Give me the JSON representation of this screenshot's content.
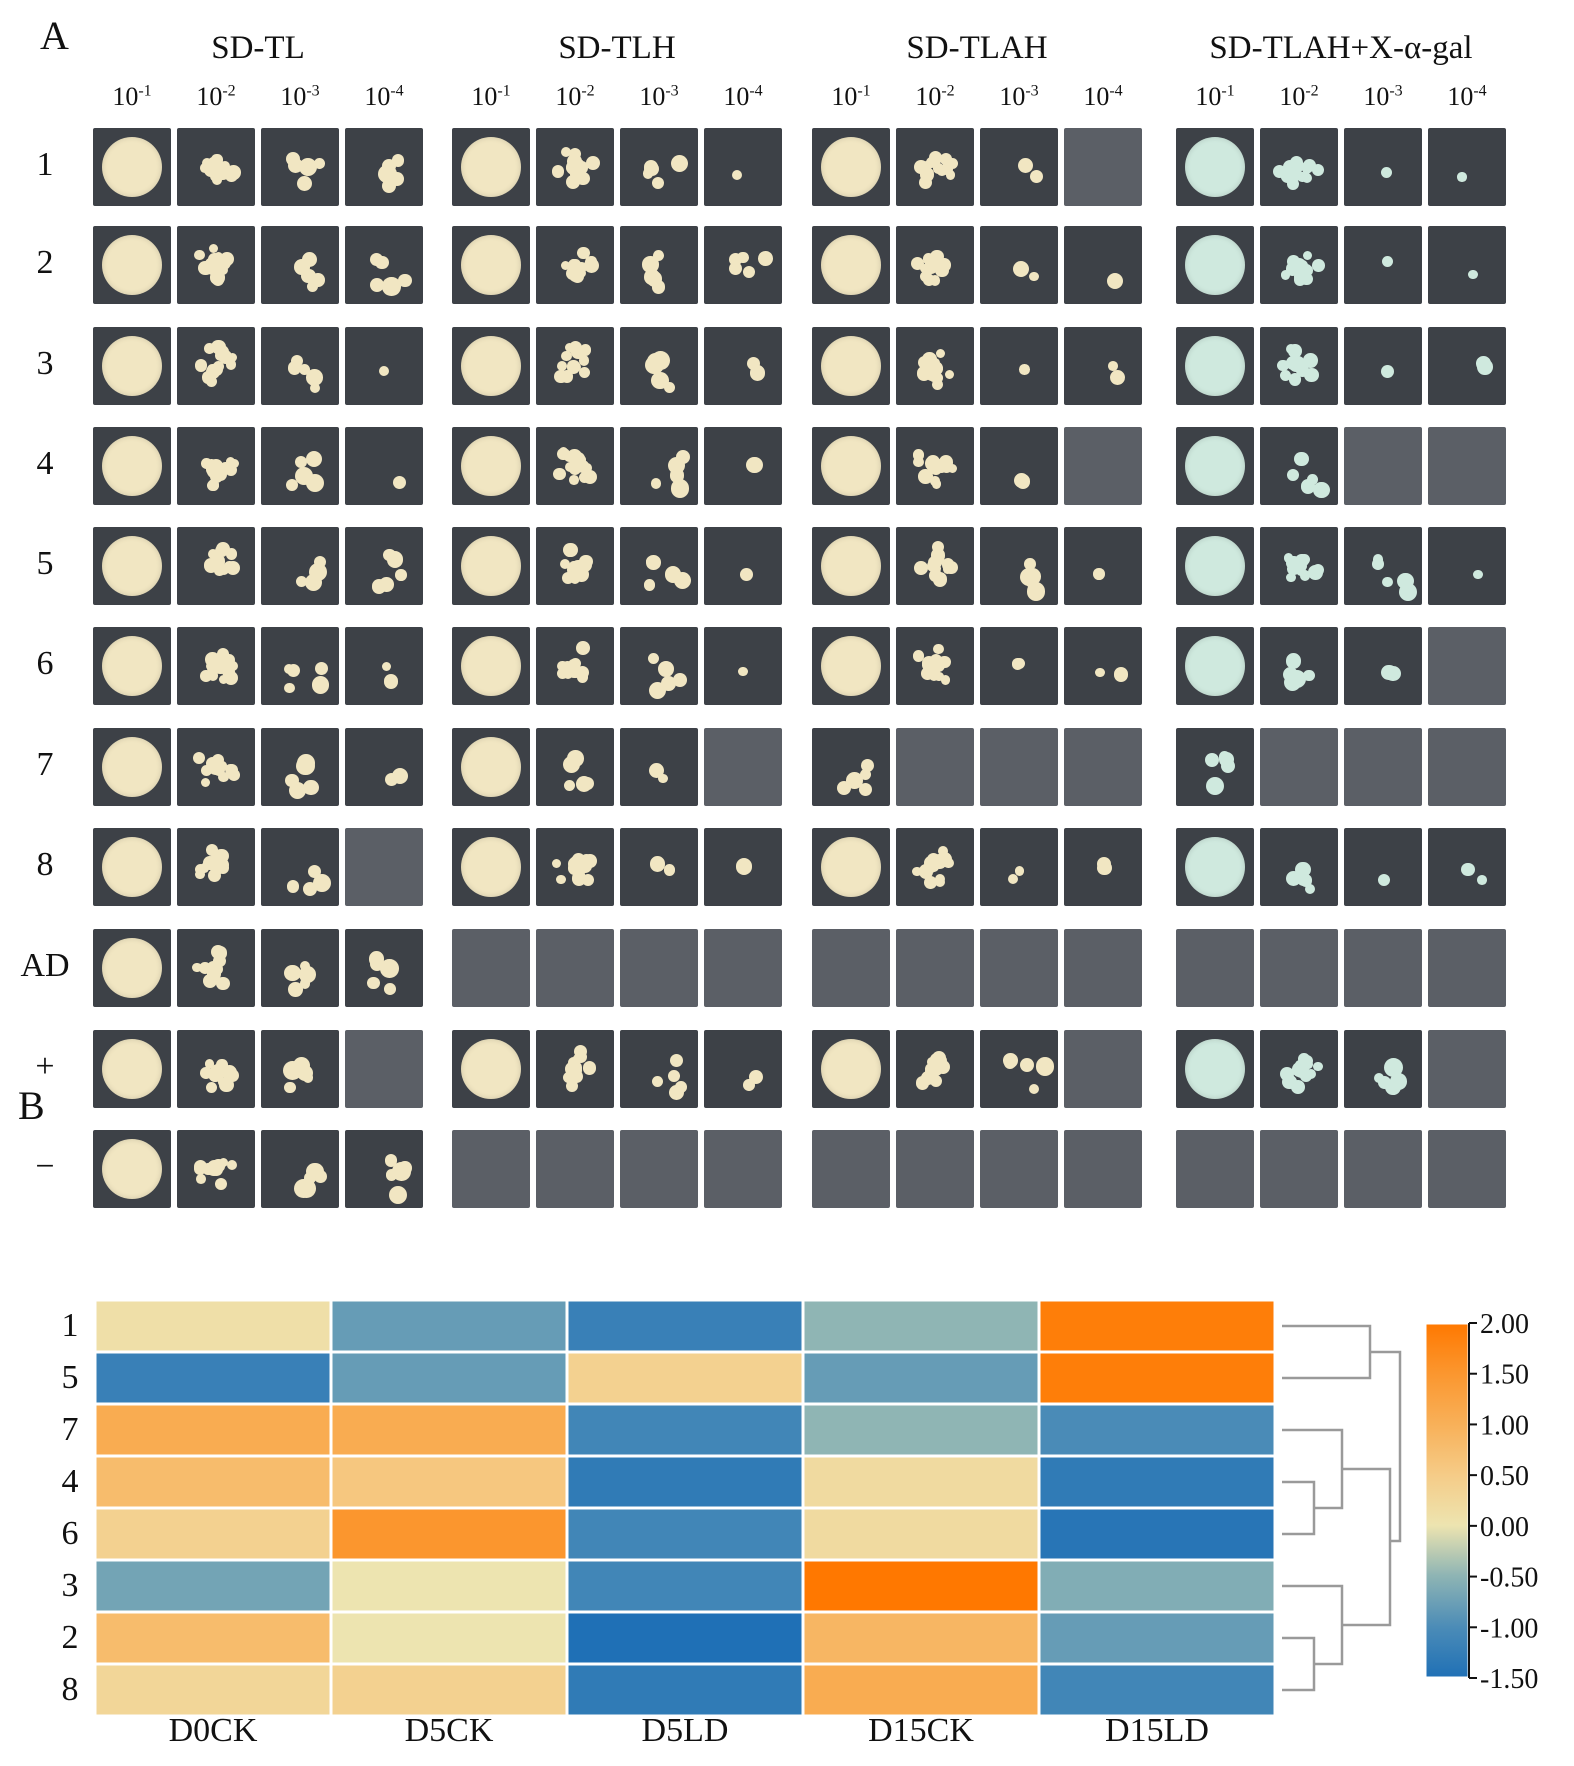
{
  "panel_a": {
    "label": "A",
    "media": [
      "SD-TL",
      "SD-TLH",
      "SD-TLAH",
      "SD-TLAH+X-α-gal"
    ],
    "dilutions": [
      {
        "base": "10",
        "exp": "-1"
      },
      {
        "base": "10",
        "exp": "-2"
      },
      {
        "base": "10",
        "exp": "-3"
      },
      {
        "base": "10",
        "exp": "-4"
      }
    ],
    "rows": [
      "1",
      "2",
      "3",
      "4",
      "5",
      "6",
      "7",
      "8",
      "AD",
      "+",
      "−"
    ],
    "growth": [
      [
        [
          4,
          3,
          2,
          2
        ],
        [
          4,
          3,
          2,
          1
        ],
        [
          4,
          3,
          1,
          0
        ],
        [
          4,
          3,
          1,
          1
        ]
      ],
      [
        [
          4,
          3,
          2,
          2
        ],
        [
          4,
          3,
          2,
          2
        ],
        [
          4,
          3,
          1,
          1
        ],
        [
          4,
          3,
          1,
          1
        ]
      ],
      [
        [
          4,
          3,
          2,
          1
        ],
        [
          4,
          3,
          2,
          1
        ],
        [
          4,
          3,
          1,
          1
        ],
        [
          4,
          3,
          1,
          1
        ]
      ],
      [
        [
          4,
          3,
          2,
          1
        ],
        [
          4,
          3,
          2,
          1
        ],
        [
          4,
          3,
          1,
          0
        ],
        [
          4,
          2,
          0,
          0
        ]
      ],
      [
        [
          4,
          3,
          2,
          2
        ],
        [
          4,
          3,
          2,
          1
        ],
        [
          4,
          3,
          2,
          1
        ],
        [
          4,
          3,
          2,
          1
        ]
      ],
      [
        [
          4,
          3,
          2,
          1
        ],
        [
          4,
          3,
          2,
          1
        ],
        [
          4,
          3,
          1,
          1
        ],
        [
          4,
          2,
          1,
          0
        ]
      ],
      [
        [
          4,
          3,
          2,
          1
        ],
        [
          4,
          2,
          1,
          0
        ],
        [
          2,
          0,
          0,
          0
        ],
        [
          2,
          0,
          0,
          0
        ]
      ],
      [
        [
          4,
          3,
          2,
          0
        ],
        [
          4,
          3,
          1,
          1
        ],
        [
          4,
          3,
          1,
          1
        ],
        [
          4,
          2,
          1,
          1
        ]
      ],
      [
        [
          4,
          3,
          2,
          2
        ],
        [
          0,
          0,
          0,
          0
        ],
        [
          0,
          0,
          0,
          0
        ],
        [
          0,
          0,
          0,
          0
        ]
      ],
      [
        [
          4,
          3,
          2,
          0
        ],
        [
          4,
          3,
          2,
          1
        ],
        [
          4,
          3,
          2,
          0
        ],
        [
          4,
          3,
          2,
          0
        ]
      ],
      [
        [
          4,
          3,
          2,
          2
        ],
        [
          0,
          0,
          0,
          0
        ],
        [
          0,
          0,
          0,
          0
        ],
        [
          0,
          0,
          0,
          0
        ]
      ]
    ],
    "colors": {
      "plate_dark": "#3d4147",
      "plate_gray": "#5b5f66",
      "colony": "#f1e6c2",
      "colony_blue": "#cfe9de"
    }
  },
  "panel_b": {
    "label": "B",
    "chart_data": {
      "type": "heatmap",
      "title": "",
      "columns": [
        "D0CK",
        "D5CK",
        "D5LD",
        "D15CK",
        "D15LD"
      ],
      "rows": [
        "1",
        "5",
        "7",
        "4",
        "6",
        "3",
        "2",
        "8"
      ],
      "values": [
        [
          0.1,
          -0.8,
          -1.2,
          -0.5,
          1.9
        ],
        [
          -1.2,
          -0.8,
          0.4,
          -0.8,
          1.9
        ],
        [
          1.1,
          1.1,
          -1.1,
          -0.5,
          -1.0
        ],
        [
          0.8,
          0.6,
          -1.3,
          0.2,
          -1.3
        ],
        [
          0.4,
          1.5,
          -1.1,
          0.2,
          -1.4
        ],
        [
          -0.7,
          0.0,
          -1.1,
          2.0,
          -0.6
        ],
        [
          0.8,
          0.0,
          -1.5,
          0.9,
          -0.8
        ],
        [
          0.3,
          0.4,
          -1.3,
          1.1,
          -1.1
        ]
      ],
      "colorbar": {
        "min": -1.5,
        "max": 2.0,
        "ticks": [
          "2.00",
          "1.50",
          "1.00",
          "0.50",
          "0.00",
          "-0.50",
          "-1.00",
          "-1.50"
        ]
      },
      "dendrogram": "row clustering"
    }
  }
}
